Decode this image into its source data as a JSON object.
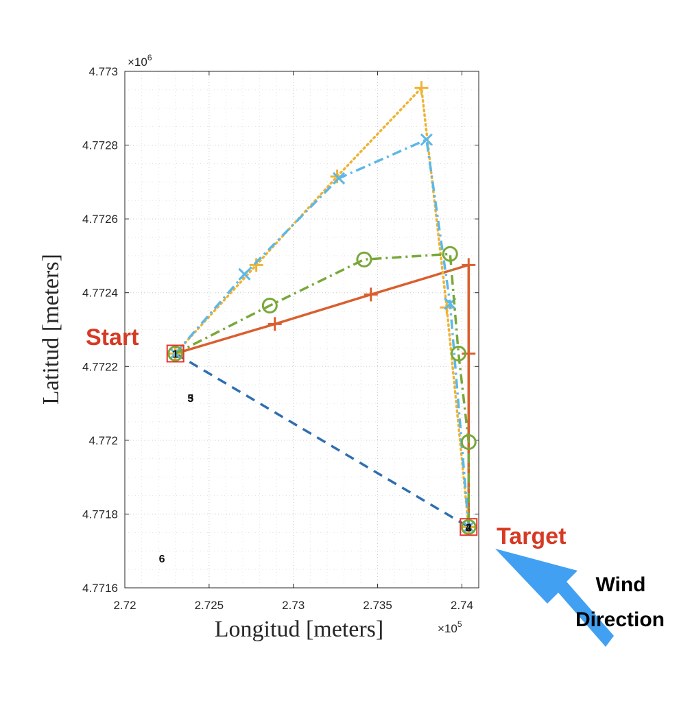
{
  "chart_data": {
    "type": "line",
    "xlabel": "Longitud [meters]",
    "ylabel": "Latitud [meters]",
    "x_exponent": "×10",
    "x_exponent_power": "5",
    "y_exponent": "×10",
    "y_exponent_power": "6",
    "xlim": [
      272000,
      274100
    ],
    "ylim": [
      4771600,
      4773000
    ],
    "x_ticks": [
      272000,
      272500,
      273000,
      273500,
      274000
    ],
    "x_tick_labels": [
      "2.72",
      "2.725",
      "2.73",
      "2.735",
      "2.74"
    ],
    "y_ticks": [
      4771600,
      4771800,
      4772000,
      4772200,
      4772400,
      4772600,
      4772800,
      4773000
    ],
    "y_tick_labels": [
      "4.7716",
      "4.7718",
      "4.772",
      "4.7722",
      "4.7724",
      "4.7726",
      "4.7728",
      "4.773"
    ],
    "grid": true,
    "series": [
      {
        "color": "#2f6fb0",
        "dash": "dashed",
        "marker": "none",
        "x": [
          272300,
          274040
        ],
        "y": [
          4772235,
          4771765
        ]
      },
      {
        "color": "#d95f2e",
        "dash": "solid",
        "marker": "plus",
        "x": [
          272300,
          272890,
          273460,
          274040,
          274040,
          274040
        ],
        "y": [
          4772235,
          4772315,
          4772395,
          4772475,
          4772235,
          4771765
        ]
      },
      {
        "color": "#eeb333",
        "dash": "dotted",
        "marker": "plus",
        "x": [
          272300,
          272780,
          273260,
          273760,
          273910,
          274040
        ],
        "y": [
          4772235,
          4772475,
          4772715,
          4772955,
          4772360,
          4771765
        ]
      },
      {
        "color": "#5cb8e8",
        "dash": "dashdot",
        "marker": "x",
        "x": [
          272300,
          272710,
          273270,
          273790,
          273930,
          274040
        ],
        "y": [
          4772235,
          4772450,
          4772710,
          4772815,
          4772370,
          4771765
        ]
      },
      {
        "color": "#78a83a",
        "dash": "dashdot",
        "marker": "circle",
        "x": [
          272300,
          272860,
          273420,
          273930,
          273980,
          274040,
          274040
        ],
        "y": [
          4772235,
          4772365,
          4772490,
          4772505,
          4772235,
          4771995,
          4771765
        ]
      }
    ],
    "point_labels": [
      {
        "text": "1",
        "x": 272300,
        "y": 4772235
      },
      {
        "text": "3",
        "x": 272390,
        "y": 4772115
      },
      {
        "text": "5",
        "x": 272390,
        "y": 4772115
      },
      {
        "text": "6",
        "x": 272220,
        "y": 4771680
      },
      {
        "text": "4",
        "x": 274040,
        "y": 4771765
      },
      {
        "text": "2",
        "x": 274040,
        "y": 4771765
      }
    ],
    "annotations": {
      "start": "Start",
      "target": "Target",
      "wind_line1": "Wind",
      "wind_line2": "Direction",
      "start_point": {
        "x": 272300,
        "y": 4772235
      },
      "target_point": {
        "x": 274040,
        "y": 4771765
      }
    },
    "annotation_colors": {
      "label_red": "#d63a24",
      "box_red": "#e8322b",
      "wind_arrow": "#42a0f2"
    }
  }
}
